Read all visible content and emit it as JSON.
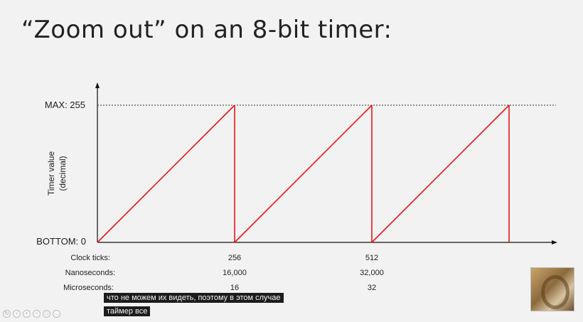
{
  "slide": {
    "title": "“Zoom out” on an 8-bit timer:"
  },
  "chart_data": {
    "type": "line",
    "title": "",
    "ylabel_line1": "Timer value",
    "ylabel_line2": "(decimal)",
    "y_tick_labels": {
      "max": "MAX: 255",
      "bottom": "BOTTOM: 0"
    },
    "ylim": [
      0,
      255
    ],
    "xlim": [
      0,
      768
    ],
    "series": [
      {
        "color": "#e8161b",
        "points": [
          [
            0,
            0
          ],
          [
            256,
            255
          ],
          [
            256,
            0
          ],
          [
            512,
            255
          ],
          [
            512,
            0
          ],
          [
            768,
            255
          ],
          [
            768,
            0
          ]
        ]
      }
    ],
    "max_reference_line": {
      "value": 255,
      "style": "dotted"
    },
    "axis_table": {
      "rows": [
        {
          "label": "Clock ticks:",
          "values": [
            {
              "x": 256,
              "text": "256"
            },
            {
              "x": 512,
              "text": "512"
            }
          ]
        },
        {
          "label": "Nanoseconds:",
          "values": [
            {
              "x": 256,
              "text": "16,000"
            },
            {
              "x": 512,
              "text": "32,000"
            }
          ]
        },
        {
          "label": "Microseconds:",
          "values": [
            {
              "x": 256,
              "text": "16"
            },
            {
              "x": 512,
              "text": "32"
            }
          ]
        }
      ]
    }
  },
  "subtitles": [
    "что не можем их видеть, поэтому в этом случае",
    "таймер все"
  ],
  "overlay": {
    "thumbnail_icon": "presenter-thumbnail",
    "controls": [
      "rotate-icon",
      "back-icon",
      "zoom-in-icon",
      "zoom-out-icon",
      "fullscreen-icon",
      "more-icon"
    ]
  }
}
